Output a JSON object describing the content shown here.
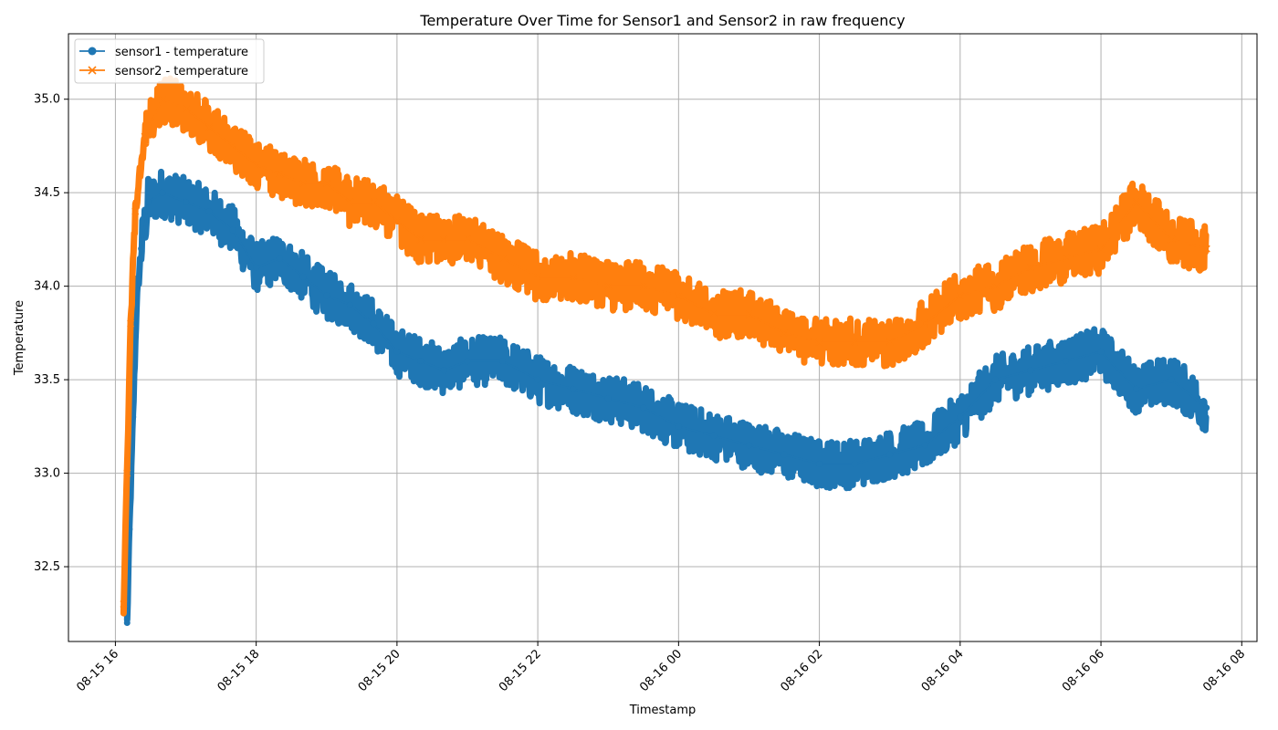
{
  "chart_data": {
    "type": "line",
    "title": "Temperature Over Time for Sensor1 and Sensor2 in raw frequency",
    "xlabel": "Timestamp",
    "ylabel": "Temperature",
    "xlim": [
      "2024-08-15T15:20",
      "2024-08-16T08:13"
    ],
    "ylim": [
      32.1,
      35.35
    ],
    "x_ticks": [
      {
        "value": "2024-08-15T16:00",
        "label": "08-15 16"
      },
      {
        "value": "2024-08-15T18:00",
        "label": "08-15 18"
      },
      {
        "value": "2024-08-15T20:00",
        "label": "08-15 20"
      },
      {
        "value": "2024-08-15T22:00",
        "label": "08-15 22"
      },
      {
        "value": "2024-08-16T00:00",
        "label": "08-16 00"
      },
      {
        "value": "2024-08-16T02:00",
        "label": "08-16 02"
      },
      {
        "value": "2024-08-16T04:00",
        "label": "08-16 04"
      },
      {
        "value": "2024-08-16T06:00",
        "label": "08-16 06"
      },
      {
        "value": "2024-08-16T08:00",
        "label": "08-16 08"
      }
    ],
    "y_ticks": [
      32.5,
      33.0,
      33.5,
      34.0,
      34.5,
      35.0
    ],
    "grid": true,
    "legend_position": "top-left",
    "series": [
      {
        "name": "sensor1 - temperature",
        "color": "#1f77b4",
        "marker": "circle",
        "points": [
          [
            "2024-08-15T16:10",
            32.2
          ],
          [
            "2024-08-15T16:12",
            32.7
          ],
          [
            "2024-08-15T16:15",
            33.3
          ],
          [
            "2024-08-15T16:18",
            33.9
          ],
          [
            "2024-08-15T16:22",
            34.2
          ],
          [
            "2024-08-15T16:28",
            34.45
          ],
          [
            "2024-08-15T16:40",
            34.5
          ],
          [
            "2024-08-15T17:00",
            34.45
          ],
          [
            "2024-08-15T17:20",
            34.4
          ],
          [
            "2024-08-15T17:40",
            34.3
          ],
          [
            "2024-08-15T18:00",
            34.1
          ],
          [
            "2024-08-15T18:20",
            34.15
          ],
          [
            "2024-08-15T18:40",
            34.05
          ],
          [
            "2024-08-15T19:00",
            33.95
          ],
          [
            "2024-08-15T19:20",
            33.9
          ],
          [
            "2024-08-15T19:40",
            33.8
          ],
          [
            "2024-08-15T20:00",
            33.65
          ],
          [
            "2024-08-15T20:20",
            33.6
          ],
          [
            "2024-08-15T20:40",
            33.55
          ],
          [
            "2024-08-15T21:00",
            33.6
          ],
          [
            "2024-08-15T21:30",
            33.6
          ],
          [
            "2024-08-15T22:00",
            33.5
          ],
          [
            "2024-08-15T22:30",
            33.45
          ],
          [
            "2024-08-15T23:00",
            33.4
          ],
          [
            "2024-08-15T23:30",
            33.35
          ],
          [
            "2024-08-16T00:00",
            33.25
          ],
          [
            "2024-08-16T00:30",
            33.2
          ],
          [
            "2024-08-16T01:00",
            33.15
          ],
          [
            "2024-08-16T01:30",
            33.1
          ],
          [
            "2024-08-16T02:00",
            33.05
          ],
          [
            "2024-08-16T02:30",
            33.05
          ],
          [
            "2024-08-16T03:00",
            33.1
          ],
          [
            "2024-08-16T03:30",
            33.15
          ],
          [
            "2024-08-16T04:00",
            33.3
          ],
          [
            "2024-08-16T04:30",
            33.5
          ],
          [
            "2024-08-16T05:00",
            33.55
          ],
          [
            "2024-08-16T05:30",
            33.6
          ],
          [
            "2024-08-16T06:00",
            33.65
          ],
          [
            "2024-08-16T06:30",
            33.45
          ],
          [
            "2024-08-16T07:00",
            33.5
          ],
          [
            "2024-08-16T07:30",
            33.35
          ]
        ]
      },
      {
        "name": "sensor2 - temperature",
        "color": "#ff7f0e",
        "marker": "x",
        "points": [
          [
            "2024-08-15T16:07",
            32.3
          ],
          [
            "2024-08-15T16:10",
            33.0
          ],
          [
            "2024-08-15T16:13",
            33.8
          ],
          [
            "2024-08-15T16:17",
            34.4
          ],
          [
            "2024-08-15T16:25",
            34.8
          ],
          [
            "2024-08-15T16:40",
            35.0
          ],
          [
            "2024-08-15T17:00",
            34.95
          ],
          [
            "2024-08-15T17:20",
            34.85
          ],
          [
            "2024-08-15T17:40",
            34.75
          ],
          [
            "2024-08-15T18:00",
            34.65
          ],
          [
            "2024-08-15T18:20",
            34.6
          ],
          [
            "2024-08-15T18:40",
            34.55
          ],
          [
            "2024-08-15T19:00",
            34.55
          ],
          [
            "2024-08-15T19:20",
            34.45
          ],
          [
            "2024-08-15T19:40",
            34.45
          ],
          [
            "2024-08-15T20:00",
            34.35
          ],
          [
            "2024-08-15T20:20",
            34.25
          ],
          [
            "2024-08-15T20:40",
            34.25
          ],
          [
            "2024-08-15T21:00",
            34.25
          ],
          [
            "2024-08-15T21:30",
            34.15
          ],
          [
            "2024-08-15T22:00",
            34.05
          ],
          [
            "2024-08-15T22:30",
            34.05
          ],
          [
            "2024-08-15T23:00",
            34.0
          ],
          [
            "2024-08-15T23:30",
            34.0
          ],
          [
            "2024-08-16T00:00",
            33.95
          ],
          [
            "2024-08-16T00:30",
            33.85
          ],
          [
            "2024-08-16T01:00",
            33.85
          ],
          [
            "2024-08-16T01:30",
            33.75
          ],
          [
            "2024-08-16T02:00",
            33.7
          ],
          [
            "2024-08-16T02:30",
            33.7
          ],
          [
            "2024-08-16T03:00",
            33.7
          ],
          [
            "2024-08-16T03:30",
            33.8
          ],
          [
            "2024-08-16T04:00",
            33.95
          ],
          [
            "2024-08-16T04:30",
            34.0
          ],
          [
            "2024-08-16T05:00",
            34.1
          ],
          [
            "2024-08-16T05:30",
            34.15
          ],
          [
            "2024-08-16T06:00",
            34.2
          ],
          [
            "2024-08-16T06:30",
            34.45
          ],
          [
            "2024-08-16T07:00",
            34.25
          ],
          [
            "2024-08-16T07:30",
            34.2
          ]
        ]
      }
    ]
  }
}
